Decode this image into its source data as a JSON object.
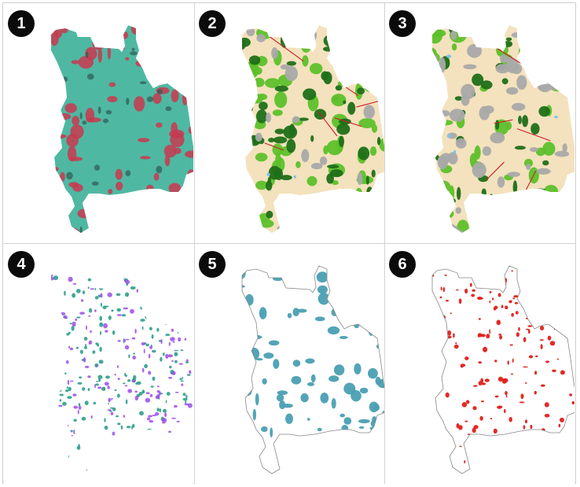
{
  "panels": [
    {
      "number": "1",
      "map": "false-color-satellite-imagery"
    },
    {
      "number": "2",
      "map": "land-cover-classification"
    },
    {
      "number": "3",
      "map": "land-cover-classification"
    },
    {
      "number": "4",
      "map": "change-composite"
    },
    {
      "number": "5",
      "map": "single-class-extent"
    },
    {
      "number": "6",
      "map": "single-class-change"
    }
  ],
  "colors": {
    "sat_base": "#4fb8a2",
    "sat_veg": "#c83850",
    "cover_bare": "#f3e2bd",
    "cover_forest_dark": "#1f6f18",
    "cover_forest_light": "#5dc02a",
    "cover_urban": "#a9a9a9",
    "cover_road": "#d01b2b",
    "cover_water": "#7cc3e7",
    "change_a": "#2f9e8c",
    "change_b": "#9b4dea",
    "extent_fill": "#4a9fb3",
    "change_fill": "#e0201a",
    "outline": "#888888"
  }
}
